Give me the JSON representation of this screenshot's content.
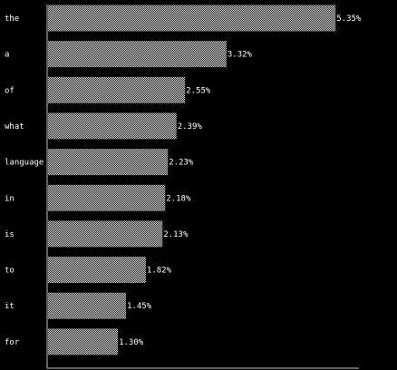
{
  "chart_data": {
    "type": "bar",
    "orientation": "horizontal",
    "categories": [
      "the",
      "a",
      "of",
      "what",
      "language",
      "in",
      "is",
      "to",
      "it",
      "for"
    ],
    "values": [
      5.35,
      3.32,
      2.55,
      2.39,
      2.23,
      2.18,
      2.13,
      1.82,
      1.45,
      1.3
    ],
    "value_labels": [
      "5.35%",
      "3.32%",
      "2.55%",
      "2.39%",
      "2.23%",
      "2.18%",
      "2.13%",
      "1.82%",
      "1.45%",
      "1.30%"
    ],
    "unit": "%",
    "title": "",
    "xlabel": "",
    "ylabel": "",
    "grid": false,
    "colors": {
      "background": "#000000",
      "bar_pattern_light": "#cfcfcf",
      "bar_pattern_dark": "#2a2a2a",
      "text": "#ffffff",
      "axis": "#bfbfbf"
    }
  }
}
